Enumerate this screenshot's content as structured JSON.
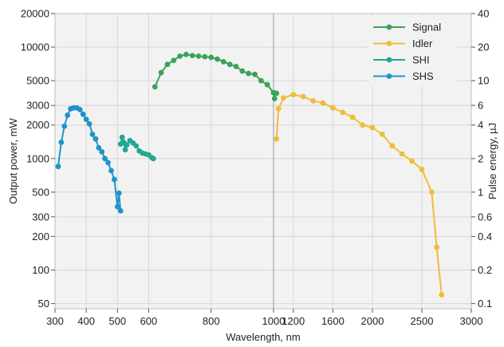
{
  "chart_data": {
    "type": "line",
    "xlabel": "Wavelength, nm",
    "ylabel_left": "Output power, mW",
    "ylabel_right": "Pulse energy, µJ",
    "y_scale": "log",
    "ylim": [
      45,
      20000
    ],
    "y2_scale": "log",
    "y2lim": [
      0.09,
      40
    ],
    "grid": true,
    "legend_position": "top-right",
    "x_break_at": 1000,
    "x_left_segment": {
      "range": [
        300,
        1000
      ],
      "ticks": [
        "300",
        "400",
        "500",
        "600",
        "800",
        "1000"
      ]
    },
    "x_right_segment": {
      "range": [
        1000,
        3000
      ],
      "ticks": [
        "1200",
        "1600",
        "2000",
        "2500",
        "3000"
      ]
    },
    "y_ticks_left": [
      "20000",
      "10000",
      "5000",
      "3000",
      "2000",
      "1000",
      "500",
      "300",
      "200",
      "100",
      "50"
    ],
    "y_ticks_right": [
      "40",
      "20",
      "10",
      "6",
      "4",
      "2",
      "1",
      "0.6",
      "0.4",
      "0.2",
      "0.1"
    ],
    "series": [
      {
        "name": "Signal",
        "color": "#3aa35a",
        "x": [
          620,
          640,
          660,
          680,
          700,
          720,
          740,
          760,
          780,
          800,
          820,
          840,
          860,
          880,
          900,
          920,
          940,
          960,
          980,
          1000,
          1010,
          1020,
          1030
        ],
        "y": [
          4400,
          5900,
          7000,
          7600,
          8300,
          8600,
          8400,
          8300,
          8200,
          8100,
          7800,
          7400,
          7000,
          6700,
          6100,
          5800,
          5700,
          5000,
          4600,
          3900,
          3450,
          3850,
          3850
        ]
      },
      {
        "name": "Idler",
        "color": "#f0bc3a",
        "x": [
          1030,
          1050,
          1100,
          1200,
          1300,
          1400,
          1500,
          1600,
          1700,
          1800,
          1900,
          2000,
          2100,
          2200,
          2300,
          2400,
          2500,
          2600,
          2650,
          2700
        ],
        "y": [
          1500,
          2800,
          3500,
          3750,
          3600,
          3300,
          3150,
          2850,
          2600,
          2350,
          2000,
          1900,
          1650,
          1300,
          1100,
          950,
          800,
          500,
          160,
          60
        ]
      },
      {
        "name": "SHI",
        "color": "#22a88e",
        "x": [
          510,
          515,
          520,
          525,
          530,
          540,
          550,
          560,
          570,
          580,
          590,
          600,
          610,
          615
        ],
        "y": [
          1350,
          1550,
          1400,
          1200,
          1330,
          1450,
          1380,
          1300,
          1170,
          1120,
          1100,
          1080,
          1020,
          1000
        ]
      },
      {
        "name": "SHS",
        "color": "#1f93c8",
        "x": [
          310,
          320,
          330,
          340,
          350,
          360,
          370,
          380,
          390,
          400,
          410,
          420,
          430,
          440,
          450,
          460,
          470,
          480,
          490,
          500,
          505,
          510
        ],
        "y": [
          850,
          1400,
          1950,
          2450,
          2800,
          2850,
          2850,
          2750,
          2500,
          2250,
          2050,
          1650,
          1500,
          1250,
          1150,
          1000,
          920,
          780,
          650,
          370,
          490,
          340
        ]
      }
    ]
  }
}
